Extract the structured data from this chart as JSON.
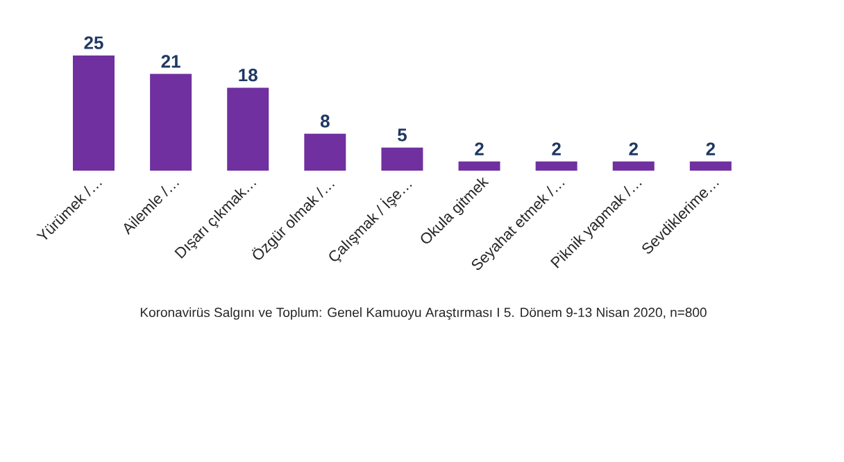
{
  "chart_data": {
    "type": "bar",
    "categories": [
      "Yürümek /…",
      "Ailemle /…",
      "Dışarı çıkmak…",
      "Özgür olmak /…",
      "Çalışmak / İşe…",
      "Okula gitmek",
      "Seyahat etmek /…",
      "Piknik yapmak /…",
      "Sevdiklerime…"
    ],
    "values": [
      25,
      21,
      18,
      8,
      5,
      2,
      2,
      2,
      2
    ],
    "color": "#7030a0",
    "data_labels": true,
    "annotations": [
      "Koronavirüs Salgını ve Toplum: Genel Kamuoyu Araştırması I 5. Dönem 9-13 Nisan 2020, n=800"
    ]
  }
}
